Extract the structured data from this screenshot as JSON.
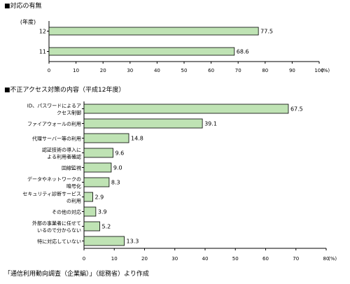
{
  "chart_data": [
    {
      "type": "bar",
      "orientation": "horizontal",
      "title": "■対応の有無",
      "category_axis_label": "(年度)",
      "categories": [
        "12",
        "11"
      ],
      "values": [
        77.5,
        68.6
      ],
      "value_labels": [
        "77.5",
        "68.6"
      ],
      "xlim": [
        0,
        100
      ],
      "x_ticks": [
        0,
        10,
        20,
        30,
        40,
        50,
        60,
        70,
        80,
        90,
        100
      ],
      "x_tick_labels": [
        "0",
        "10",
        "20",
        "30",
        "40",
        "50",
        "60",
        "70",
        "80",
        "90",
        "100"
      ],
      "x_unit": "(%)",
      "bar_color": "#bfe3b4",
      "grid": false
    },
    {
      "type": "bar",
      "orientation": "horizontal",
      "title": "■不正アクセス対策の内容（平成12年度）",
      "categories": [
        [
          "ID、パスワードによるア",
          "クセス制御"
        ],
        [
          "ファイアウォールの利用"
        ],
        [
          "代理サーバー等の利用"
        ],
        [
          "認証技術の導入に",
          "よる利用者確認"
        ],
        [
          "回線監視"
        ],
        [
          "データやネットワークの",
          "暗号化"
        ],
        [
          "セキュリティ診断サービス",
          "の利用"
        ],
        [
          "その他の対応"
        ],
        [
          "外部の事業者に任せて",
          "いるので分からない"
        ],
        [
          "特に対応していない"
        ]
      ],
      "values": [
        67.5,
        39.1,
        14.8,
        9.6,
        9.0,
        8.3,
        2.9,
        3.9,
        5.2,
        13.3
      ],
      "value_labels": [
        "67.5",
        "39.1",
        "14.8",
        "9.6",
        "9.0",
        "8.3",
        "2.9",
        "3.9",
        "5.2",
        "13.3"
      ],
      "xlim": [
        0,
        80
      ],
      "x_ticks": [
        0,
        10,
        20,
        30,
        40,
        50,
        60,
        70,
        80
      ],
      "x_tick_labels": [
        "0",
        "10",
        "20",
        "30",
        "40",
        "50",
        "60",
        "70",
        "80"
      ],
      "x_unit": "(%)",
      "bar_color": "#bfe3b4",
      "grid": false
    }
  ],
  "source_note": "「通信利用動向調査（企業編）」（総務省）より作成"
}
